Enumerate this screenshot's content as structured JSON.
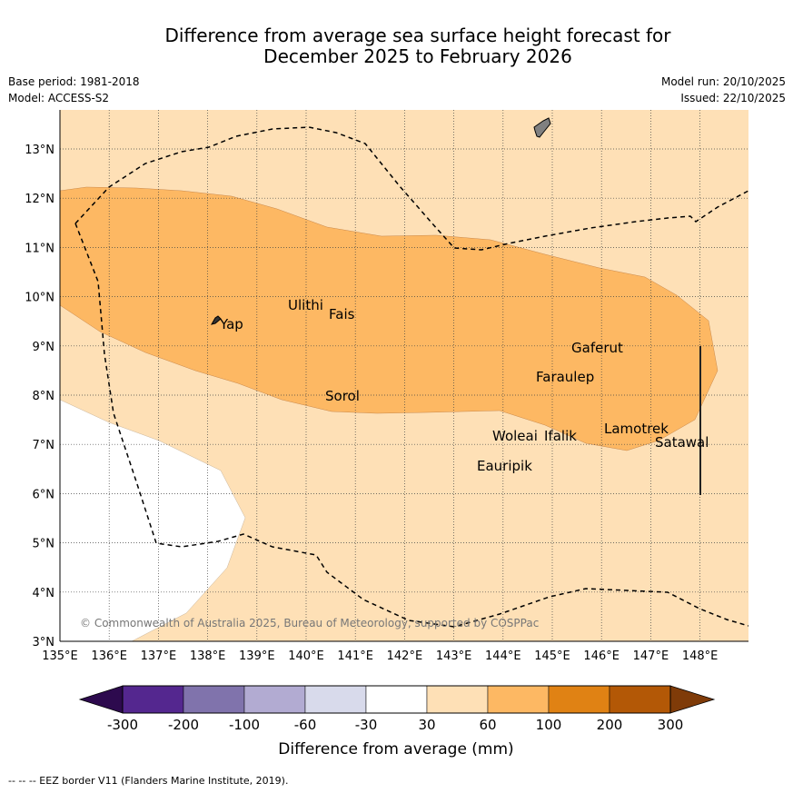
{
  "title_line1": "Difference from average sea surface height forecast for",
  "title_line2": "December 2025 to February 2026",
  "base_period": "Base period: 1981-2018",
  "model": "Model: ACCESS-S2",
  "model_run": "Model run: 20/10/2025",
  "issued": "Issued: 22/10/2025",
  "copyright": "© Commonwealth of Australia 2025, Bureau of Meteorology, supported by COSPPac",
  "lon_ticks": [
    "135°E",
    "136°E",
    "137°E",
    "138°E",
    "139°E",
    "140°E",
    "141°E",
    "142°E",
    "143°E",
    "144°E",
    "145°E",
    "146°E",
    "147°E",
    "148°E"
  ],
  "lat_ticks": [
    "3°N",
    "4°N",
    "5°N",
    "6°N",
    "7°N",
    "8°N",
    "9°N",
    "10°N",
    "11°N",
    "12°N",
    "13°N"
  ],
  "places": [
    "Ulithi",
    "Fais",
    "Yap",
    "Gaferut",
    "Faraulep",
    "Sorol",
    "Woleai",
    "Ifalik",
    "Lamotrek",
    "Satawal",
    "Eauripik"
  ],
  "legend": {
    "title": "Difference from average (mm)",
    "labels": [
      "-300",
      "-200",
      "-100",
      "-60",
      "-30",
      "30",
      "60",
      "100",
      "200",
      "300"
    ],
    "colors": [
      "#2d0a4e",
      "#54278f",
      "#8073ac",
      "#b2abd2",
      "#d8daeb",
      "#ffffff",
      "#fee0b6",
      "#fdb863",
      "#e08214",
      "#b35806",
      "#7f3b08"
    ]
  },
  "colors": {
    "band_30_60": "#fee0b6",
    "band_60_100": "#fdb863",
    "island": "#808080"
  },
  "footnote": "-- -- -- EEZ border V11 (Flanders Marine Institute, 2019)."
}
